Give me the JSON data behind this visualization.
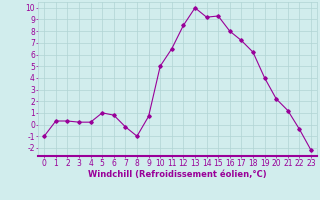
{
  "x": [
    0,
    1,
    2,
    3,
    4,
    5,
    6,
    7,
    8,
    9,
    10,
    11,
    12,
    13,
    14,
    15,
    16,
    17,
    18,
    19,
    20,
    21,
    22,
    23
  ],
  "y": [
    -1,
    0.3,
    0.3,
    0.2,
    0.2,
    1.0,
    0.8,
    -0.2,
    -1.0,
    0.7,
    5.0,
    6.5,
    8.5,
    10.0,
    9.2,
    9.3,
    8.0,
    7.2,
    6.2,
    4.0,
    2.2,
    1.2,
    -0.4,
    -2.2
  ],
  "line_color": "#990099",
  "marker": "D",
  "markersize": 1.8,
  "linewidth": 0.8,
  "xlabel": "Windchill (Refroidissement éolien,°C)",
  "ylabel_ticks": [
    -2,
    -1,
    0,
    1,
    2,
    3,
    4,
    5,
    6,
    7,
    8,
    9,
    10
  ],
  "xlim": [
    -0.5,
    23.5
  ],
  "ylim": [
    -2.7,
    10.5
  ],
  "bg_color": "#d1eded",
  "grid_color": "#b0d4d4",
  "tick_color": "#990099",
  "label_color": "#990099",
  "xlabel_fontsize": 6.0,
  "tick_fontsize": 5.5
}
